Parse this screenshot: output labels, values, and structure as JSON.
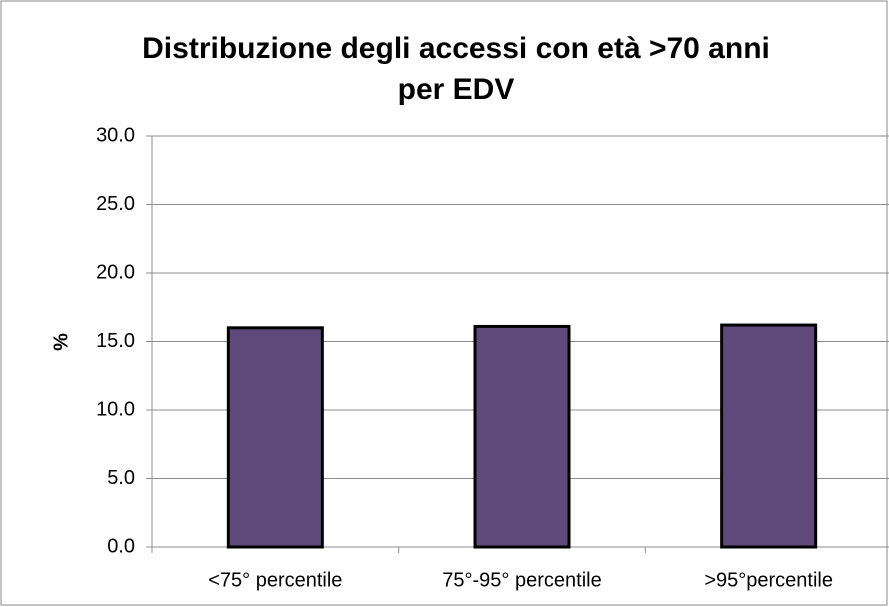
{
  "chart_data": {
    "type": "bar",
    "title": [
      "Distribuzione degli accessi con età >70 anni",
      "per EDV"
    ],
    "y_label": "%",
    "categories": [
      "<75° percentile",
      "75°-95° percentile",
      ">95°percentile"
    ],
    "values": [
      16.0,
      16.1,
      16.2
    ],
    "color": "#604a7b",
    "ylim": [
      0,
      30
    ],
    "yticks": [
      {
        "value": 0,
        "label": "0.0"
      },
      {
        "value": 5,
        "label": "5.0"
      },
      {
        "value": 10,
        "label": "10.0"
      },
      {
        "value": 15,
        "label": "15.0"
      },
      {
        "value": 20,
        "label": "20.0"
      },
      {
        "value": 25,
        "label": "25.0"
      },
      {
        "value": 30,
        "label": "30.0"
      }
    ],
    "grid": true
  }
}
